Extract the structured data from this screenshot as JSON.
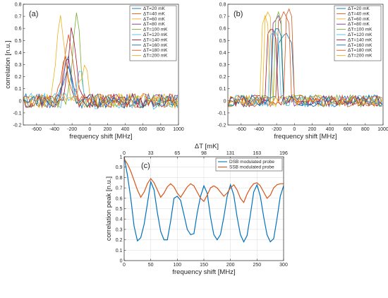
{
  "chart_data": [
    {
      "type": "line",
      "panel_label": "(a)",
      "xlabel": "frequency shift [MHz]",
      "ylabel": "correlation [n.u.]",
      "xlim": [
        -750,
        1000
      ],
      "ylim": [
        -0.2,
        0.8
      ],
      "xticks": [
        -600,
        -400,
        -200,
        0,
        200,
        400,
        600,
        800,
        1000
      ],
      "yticks": [
        -0.2,
        -0.1,
        0,
        0.1,
        0.2,
        0.3,
        0.4,
        0.5,
        0.6,
        0.7,
        0.8
      ],
      "legend_position": "top-right",
      "series": [
        {
          "name": "ΔT=20 mK",
          "color": "#0072BD",
          "peak_x": -250,
          "peak_y": 0.36,
          "width": 55,
          "noise": 0.06
        },
        {
          "name": "ΔT=40 mK",
          "color": "#D95319",
          "peak_x": -240,
          "peak_y": 0.58,
          "width": 60,
          "noise": 0.06
        },
        {
          "name": "ΔT=60 mK",
          "color": "#EDB120",
          "peak_x": -330,
          "peak_y": 0.68,
          "width": 65,
          "noise": 0.06
        },
        {
          "name": "ΔT=80 mK",
          "color": "#7E2F8E",
          "peak_x": -250,
          "peak_y": 0.37,
          "width": 60,
          "noise": 0.06
        },
        {
          "name": "ΔT=100 mK",
          "color": "#77AC30",
          "peak_x": -150,
          "peak_y": 0.73,
          "width": 55,
          "noise": 0.06
        },
        {
          "name": "ΔT=120 mK",
          "color": "#4DBEEE",
          "peak_x": -120,
          "peak_y": 0.22,
          "width": 60,
          "noise": 0.07
        },
        {
          "name": "ΔT=140 mK",
          "color": "#A2142F",
          "peak_x": -200,
          "peak_y": 0.62,
          "width": 60,
          "noise": 0.06
        },
        {
          "name": "ΔT=160 mK",
          "color": "#0072BD",
          "peak_x": -250,
          "peak_y": 0.28,
          "width": 60,
          "noise": 0.06
        },
        {
          "name": "ΔT=180 mK",
          "color": "#D95319",
          "peak_x": -280,
          "peak_y": 0.33,
          "width": 60,
          "noise": 0.06
        },
        {
          "name": "ΔT=200 mK",
          "color": "#EDB120",
          "peak_x": -60,
          "peak_y": 0.28,
          "width": 60,
          "noise": 0.06
        }
      ]
    },
    {
      "type": "line",
      "panel_label": "(b)",
      "xlabel": "frequency shift [MHz]",
      "ylabel": "",
      "xlim": [
        -750,
        1000
      ],
      "ylim": [
        -0.2,
        0.8
      ],
      "xticks": [
        -600,
        -400,
        -200,
        0,
        200,
        400,
        600,
        800,
        1000
      ],
      "yticks": [
        -0.2,
        -0.1,
        0,
        0.1,
        0.2,
        0.3,
        0.4,
        0.5,
        0.6,
        0.7,
        0.8
      ],
      "legend_position": "top-right",
      "series": [
        {
          "name": "ΔT=20 mK",
          "color": "#0072BD",
          "center": -100,
          "peak_y": 0.58,
          "halfwidth": 80,
          "noise": 0.05
        },
        {
          "name": "ΔT=40 mK",
          "color": "#D95319",
          "center": -120,
          "peak_y": 0.74,
          "halfwidth": 70,
          "noise": 0.05
        },
        {
          "name": "ΔT=60 mK",
          "color": "#EDB120",
          "center": -300,
          "peak_y": 0.75,
          "halfwidth": 50,
          "noise": 0.05
        },
        {
          "name": "ΔT=80 mK",
          "color": "#7E2F8E",
          "center": -190,
          "peak_y": 0.72,
          "halfwidth": 55,
          "noise": 0.05
        },
        {
          "name": "ΔT=100 mK",
          "color": "#77AC30",
          "center": -180,
          "peak_y": 0.73,
          "halfwidth": 55,
          "noise": 0.05
        },
        {
          "name": "ΔT=120 mK",
          "color": "#4DBEEE",
          "center": -230,
          "peak_y": 0.6,
          "halfwidth": 60,
          "noise": 0.05
        },
        {
          "name": "ΔT=140 mK",
          "color": "#A2142F",
          "center": -260,
          "peak_y": 0.62,
          "halfwidth": 55,
          "noise": 0.05
        },
        {
          "name": "ΔT=160 mK",
          "color": "#0072BD",
          "center": -200,
          "peak_y": 0.62,
          "halfwidth": 60,
          "noise": 0.05
        },
        {
          "name": "ΔT=180 mK",
          "color": "#D95319",
          "center": -60,
          "peak_y": 0.76,
          "halfwidth": 55,
          "noise": 0.05
        },
        {
          "name": "ΔT=200 mK",
          "color": "#EDB120",
          "center": -330,
          "peak_y": 0.7,
          "halfwidth": 50,
          "noise": 0.05
        }
      ]
    },
    {
      "type": "line",
      "panel_label": "(c)",
      "xlabel": "frequency shift [MHz]",
      "ylabel": "correlation peak [n.u.]",
      "top_axis_label": "ΔT  [mK]",
      "top_ticks": [
        {
          "label": "0",
          "x": 0
        },
        {
          "label": "33",
          "x": 50
        },
        {
          "label": "65",
          "x": 100
        },
        {
          "label": "98",
          "x": 150
        },
        {
          "label": "131",
          "x": 200
        },
        {
          "label": "163",
          "x": 250
        },
        {
          "label": "196",
          "x": 300
        }
      ],
      "xlim": [
        0,
        300
      ],
      "ylim": [
        0,
        1
      ],
      "xticks": [
        0,
        50,
        100,
        150,
        200,
        250,
        300
      ],
      "yticks": [
        0,
        0.1,
        0.2,
        0.3,
        0.4,
        0.5,
        0.6,
        0.7,
        0.8,
        0.9,
        1
      ],
      "grid": true,
      "legend_position": "top-right",
      "series": [
        {
          "name": "DSB modulated probe",
          "color": "#0072BD",
          "x": [
            0,
            6.25,
            12.5,
            18.75,
            25,
            31.25,
            37.5,
            43.75,
            50,
            56.25,
            62.5,
            68.75,
            75,
            81.25,
            87.5,
            93.75,
            100,
            106.25,
            112.5,
            118.75,
            125,
            131.25,
            137.5,
            143.75,
            150,
            156.25,
            162.5,
            168.75,
            175,
            181.25,
            187.5,
            193.75,
            200,
            206.25,
            212.5,
            218.75,
            225,
            231.25,
            237.5,
            243.75,
            250,
            256.25,
            262.5,
            268.75,
            275,
            281.25,
            287.5,
            293.75,
            300
          ],
          "y": [
            1.0,
            0.82,
            0.6,
            0.33,
            0.19,
            0.22,
            0.35,
            0.55,
            0.76,
            0.68,
            0.46,
            0.28,
            0.2,
            0.2,
            0.38,
            0.6,
            0.62,
            0.58,
            0.44,
            0.3,
            0.25,
            0.26,
            0.46,
            0.62,
            0.72,
            0.65,
            0.42,
            0.25,
            0.2,
            0.25,
            0.42,
            0.62,
            0.73,
            0.63,
            0.42,
            0.25,
            0.18,
            0.24,
            0.44,
            0.66,
            0.73,
            0.62,
            0.42,
            0.25,
            0.18,
            0.21,
            0.4,
            0.62,
            0.72
          ]
        },
        {
          "name": "SSB modulated probe",
          "color": "#D95319",
          "x": [
            0,
            6.25,
            12.5,
            18.75,
            25,
            31.25,
            37.5,
            43.75,
            50,
            56.25,
            62.5,
            68.75,
            75,
            81.25,
            87.5,
            93.75,
            100,
            106.25,
            112.5,
            118.75,
            125,
            131.25,
            137.5,
            143.75,
            150,
            156.25,
            162.5,
            168.75,
            175,
            181.25,
            187.5,
            193.75,
            200,
            206.25,
            212.5,
            218.75,
            225,
            231.25,
            237.5,
            243.75,
            250,
            256.25,
            262.5,
            268.75,
            275,
            281.25,
            287.5,
            293.75,
            300
          ],
          "y": [
            0.98,
            0.93,
            0.86,
            0.77,
            0.68,
            0.61,
            0.66,
            0.74,
            0.79,
            0.75,
            0.68,
            0.61,
            0.65,
            0.71,
            0.74,
            0.71,
            0.65,
            0.61,
            0.66,
            0.71,
            0.74,
            0.72,
            0.66,
            0.6,
            0.57,
            0.63,
            0.7,
            0.72,
            0.7,
            0.66,
            0.62,
            0.65,
            0.7,
            0.73,
            0.68,
            0.6,
            0.56,
            0.64,
            0.7,
            0.74,
            0.75,
            0.72,
            0.66,
            0.6,
            0.63,
            0.7,
            0.73,
            0.74,
            0.74
          ]
        }
      ]
    }
  ]
}
